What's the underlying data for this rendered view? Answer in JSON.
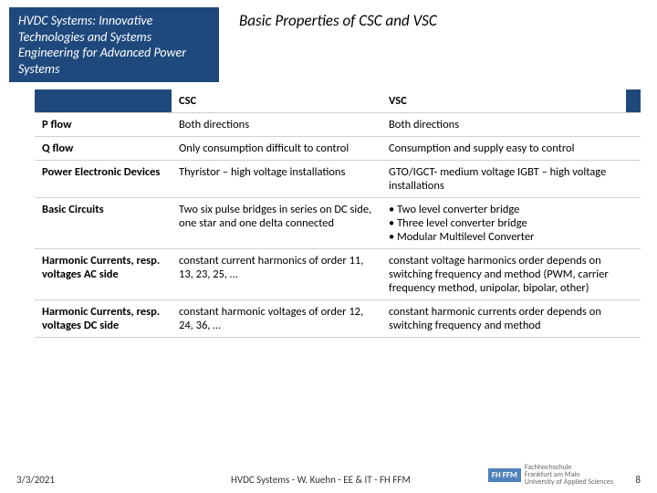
{
  "header": {
    "course_title_html": "HVDC Systems: Innovative Technologies and Systems Engineering for Advanced Power Systems",
    "slide_title": "Basic Properties of CSC and VSC"
  },
  "table": {
    "col_csc": "CSC",
    "col_vsc": "VSC",
    "rows": [
      {
        "label": "P flow",
        "csc": "Both directions",
        "vsc": "Both directions"
      },
      {
        "label": "Q flow",
        "csc": "Only consumption difficult to control",
        "vsc": "Consumption and supply easy to control"
      },
      {
        "label": "Power Electronic Devices",
        "csc": "Thyristor – high voltage installations",
        "vsc": "GTO/IGCT- medium voltage IGBT – high voltage installations"
      },
      {
        "label": "Basic Circuits",
        "csc": "Two six pulse bridges in series on DC side, one star and one delta connected",
        "vsc_list": [
          "Two level converter bridge",
          "Three level converter bridge",
          "Modular Multilevel Converter"
        ]
      },
      {
        "label": "Harmonic Currents, resp. voltages AC side",
        "csc": "constant current harmonics of order 11, 13, 23, 25, …",
        "vsc": "constant voltage harmonics order depends on switching frequency and method (PWM, carrier frequency method, unipolar, bipolar, other)"
      },
      {
        "label": "Harmonic Currents, resp. voltages DC side",
        "csc": "constant harmonic voltages of order 12, 24, 36, …",
        "vsc": "constant harmonic currents order depends on switching frequency and method"
      }
    ]
  },
  "footer": {
    "date": "3/3/2021",
    "center": "HVDC Systems - W. Kuehn - EE & IT - FH FFM",
    "logo_badge": "FH FFM",
    "logo_line1": "Fachhochschule",
    "logo_line2": "Frankfurt am Main",
    "logo_line3": "University of Applied Sciences",
    "page": "8"
  },
  "colors": {
    "brand_dark": "#1f497d",
    "brand_light": "#4f81bd",
    "border": "#d0d0d0"
  }
}
